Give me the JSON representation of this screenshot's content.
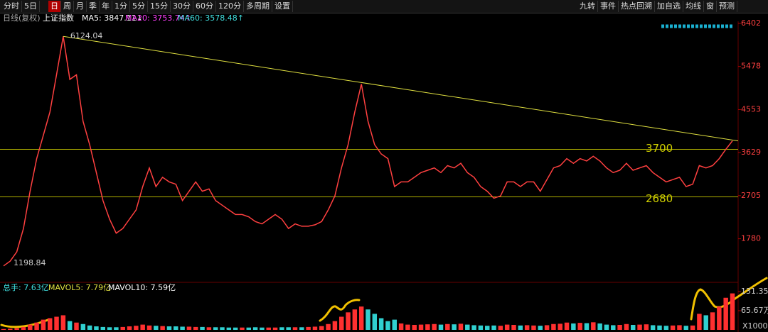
{
  "toolbar": {
    "left": [
      "分时",
      "5日",
      "日",
      "周",
      "月",
      "季",
      "年",
      "1分",
      "5分",
      "15分",
      "30分",
      "60分",
      "120分",
      "多周期",
      "设置"
    ],
    "right": [
      "九转",
      "事件",
      "热点回溯",
      "加自选",
      "均线",
      "窗",
      "预测"
    ]
  },
  "header": {
    "period": "日线(复权)",
    "index": "上证指数",
    "ma": [
      "MA5: 3847.11↓",
      "MA20: 3753.74↑",
      "MA60: 3578.48↑"
    ]
  },
  "chart_data": {
    "type": "candlestick-close",
    "color": "#ff4040",
    "values": [
      1198.84,
      1300,
      1500,
      2000,
      2800,
      3500,
      4000,
      4500,
      5300,
      6124.04,
      5200,
      5300,
      4300,
      3800,
      3200,
      2600,
      2200,
      1900,
      2000,
      2200,
      2400,
      2900,
      3300,
      2900,
      3100,
      3000,
      2950,
      2600,
      2800,
      3000,
      2800,
      2850,
      2600,
      2500,
      2400,
      2300,
      2300,
      2250,
      2150,
      2100,
      2200,
      2300,
      2200,
      2000,
      2100,
      2050,
      2050,
      2080,
      2150,
      2400,
      2700,
      3300,
      3800,
      4500,
      5100,
      4300,
      3800,
      3600,
      3500,
      2900,
      3000,
      3000,
      3100,
      3200,
      3250,
      3300,
      3200,
      3350,
      3300,
      3400,
      3200,
      3100,
      2900,
      2800,
      2650,
      2700,
      3000,
      3000,
      2900,
      3000,
      3000,
      2800,
      3050,
      3300,
      3350,
      3500,
      3400,
      3500,
      3450,
      3550,
      3450,
      3300,
      3200,
      3250,
      3400,
      3250,
      3300,
      3350,
      3200,
      3100,
      3000,
      3050,
      3100,
      2900,
      2950,
      3350,
      3300,
      3350,
      3500,
      3700,
      3880
    ],
    "ylim": [
      891,
      6447
    ],
    "yticks": [
      6402,
      5478,
      4553,
      3629,
      2705,
      1780
    ],
    "high_label": 6124.04,
    "low_label": 1198.84,
    "levels": [
      3700,
      2680
    ],
    "trend_line": [
      6124.04,
      3880
    ],
    "volume": {
      "labels": [
        "总手: 7.63亿",
        "MAVOL5: 7.79亿",
        "MAVOL10: 7.59亿"
      ],
      "values": [
        3,
        4,
        6,
        10,
        18,
        25,
        35,
        40,
        45,
        50,
        30,
        25,
        20,
        15,
        12,
        10,
        9,
        9,
        10,
        12,
        14,
        18,
        15,
        14,
        13,
        12,
        12,
        11,
        11,
        10,
        10,
        9,
        9,
        9,
        8,
        8,
        8,
        8,
        9,
        8,
        8,
        8,
        9,
        9,
        9,
        9,
        10,
        11,
        13,
        20,
        30,
        45,
        60,
        70,
        80,
        70,
        55,
        40,
        30,
        35,
        22,
        18,
        17,
        18,
        19,
        20,
        18,
        20,
        19,
        21,
        18,
        16,
        15,
        14,
        15,
        14,
        18,
        17,
        15,
        16,
        15,
        14,
        16,
        20,
        21,
        25,
        22,
        24,
        23,
        26,
        22,
        18,
        16,
        17,
        20,
        17,
        18,
        19,
        16,
        15,
        14,
        15,
        16,
        14,
        15,
        55,
        50,
        60,
        80,
        110,
        125
      ],
      "ylim": [
        0,
        158
      ],
      "yticks": [
        {
          "value": 131.35,
          "label": "131.35万"
        },
        {
          "value": 65.67,
          "label": "65.67万"
        }
      ],
      "unit": "X1000",
      "up_color": "#ff3030",
      "down_color": "#30d0d0"
    }
  }
}
